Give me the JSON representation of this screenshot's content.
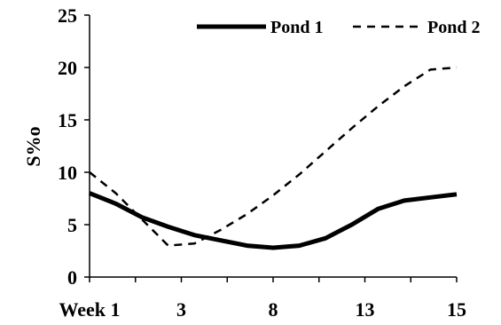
{
  "chart_data": {
    "type": "line",
    "title": "",
    "xlabel": "",
    "ylabel": "S%o",
    "categories": [
      "Week 1",
      "3",
      "8",
      "13",
      "15"
    ],
    "ylim": [
      0,
      25
    ],
    "yticks": [
      "0",
      "5",
      "10",
      "15",
      "20",
      "25"
    ],
    "grid": false,
    "legend_position": "top-right",
    "series": [
      {
        "name": "Pond 1",
        "style": "solid",
        "color": "#000000",
        "x": [
          1,
          2,
          3,
          4,
          5,
          6,
          7,
          8,
          9,
          10,
          11,
          12,
          13,
          14,
          15
        ],
        "values": [
          8.0,
          7.0,
          5.7,
          4.8,
          4.0,
          3.5,
          3.0,
          2.8,
          3.0,
          3.7,
          5.0,
          6.5,
          7.3,
          7.6,
          7.9
        ]
      },
      {
        "name": "Pond 2",
        "style": "dashed",
        "color": "#000000",
        "x": [
          1,
          2,
          3,
          4,
          5,
          6,
          7,
          8,
          9,
          10,
          11,
          12,
          13,
          14,
          15
        ],
        "values": [
          10.0,
          8.0,
          5.5,
          3.0,
          3.2,
          4.5,
          6.0,
          7.8,
          9.8,
          12.0,
          14.2,
          16.3,
          18.2,
          19.8,
          20.0
        ]
      }
    ],
    "x_tick_positions": [
      1,
      4.5,
      8,
      11.5,
      15
    ]
  }
}
